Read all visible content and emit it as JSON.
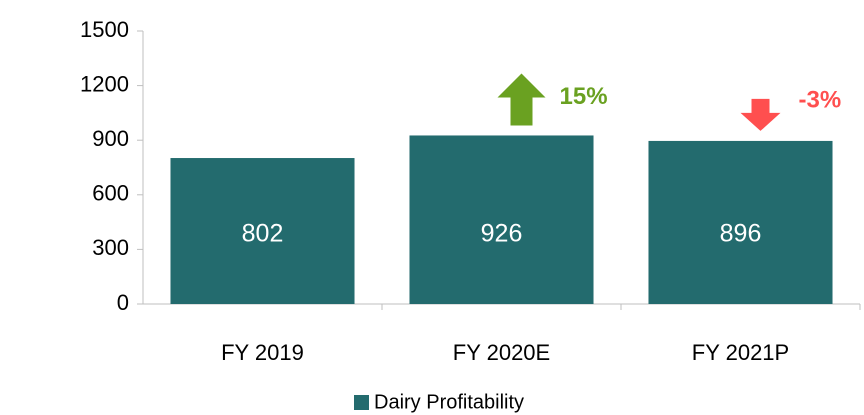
{
  "chart_data": {
    "type": "bar",
    "categories": [
      "FY 2019",
      "FY 2020E",
      "FY 2021P"
    ],
    "series": [
      {
        "name": "Dairy Profitability",
        "color": "#236b6e",
        "values": [
          802,
          926,
          896
        ]
      }
    ],
    "ylim": [
      0,
      1500
    ],
    "yticks": [
      0,
      300,
      600,
      900,
      1200,
      1500
    ],
    "grid": false,
    "legend": "bottom",
    "annotations": [
      {
        "category": "FY 2020E",
        "text": "15%",
        "direction": "up",
        "color": "#6aa121"
      },
      {
        "category": "FY 2021P",
        "text": "-3%",
        "direction": "down",
        "color": "#ff4f4f"
      }
    ]
  }
}
